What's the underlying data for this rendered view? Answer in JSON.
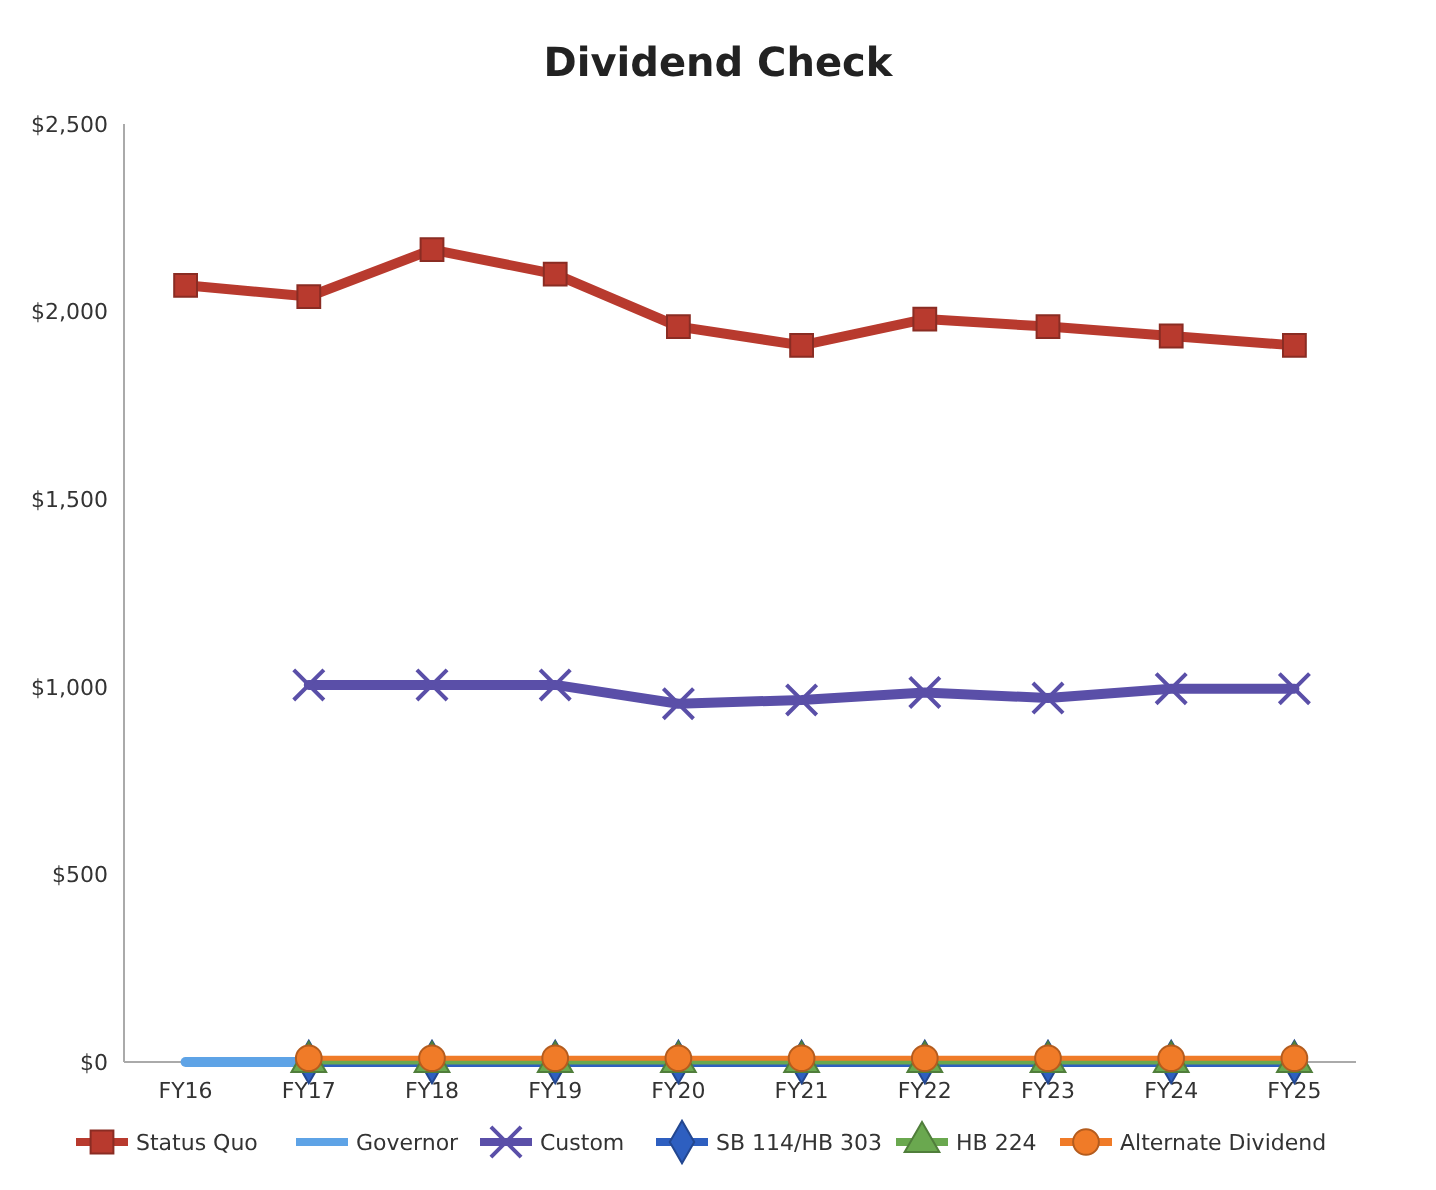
{
  "chart_data": {
    "type": "line",
    "title": "Dividend Check",
    "categories": [
      "FY16",
      "FY17",
      "FY18",
      "FY19",
      "FY20",
      "FY21",
      "FY22",
      "FY23",
      "FY24",
      "FY25"
    ],
    "series": [
      {
        "name": "Status Quo",
        "color": "#b83a2e",
        "marker": "square",
        "values": [
          2070,
          2040,
          2165,
          2100,
          1960,
          1910,
          1980,
          1960,
          1935,
          1910
        ]
      },
      {
        "name": "Governor",
        "color": "#5ea3e6",
        "marker": "none",
        "values": [
          0,
          0,
          null,
          null,
          null,
          null,
          null,
          null,
          null,
          null
        ]
      },
      {
        "name": "Custom",
        "color": "#5a4fa8",
        "marker": "cross",
        "values": [
          null,
          1005,
          1005,
          1005,
          955,
          965,
          985,
          970,
          995,
          995
        ]
      },
      {
        "name": "SB 114/HB 303",
        "color": "#2e5fc0",
        "marker": "diamond",
        "values": [
          null,
          0,
          0,
          0,
          0,
          0,
          0,
          0,
          0,
          0
        ]
      },
      {
        "name": "HB 224",
        "color": "#6aa84f",
        "marker": "triangle",
        "values": [
          null,
          0,
          0,
          0,
          0,
          0,
          0,
          0,
          0,
          0
        ]
      },
      {
        "name": "Alternate Dividend",
        "color": "#f07b28",
        "marker": "circle",
        "values": [
          null,
          10,
          10,
          10,
          10,
          10,
          10,
          10,
          10,
          10
        ]
      }
    ],
    "ylim": [
      0,
      2500
    ],
    "yticks": [
      {
        "value": 0,
        "label": "$0"
      },
      {
        "value": 500,
        "label": "$500"
      },
      {
        "value": 1000,
        "label": "$1,000"
      },
      {
        "value": 1500,
        "label": "$1,500"
      },
      {
        "value": 2000,
        "label": "$2,000"
      },
      {
        "value": 2500,
        "label": "$2,500"
      }
    ],
    "grid": false,
    "legend": "bottom"
  }
}
